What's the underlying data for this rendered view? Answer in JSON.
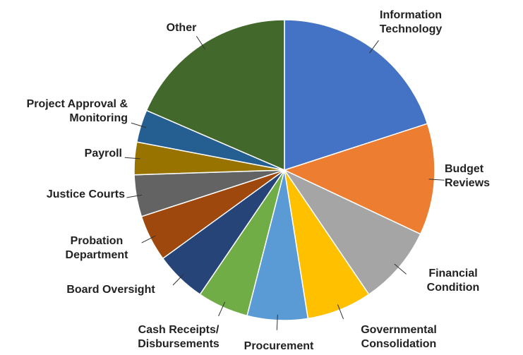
{
  "chart_data": {
    "type": "pie",
    "categories": [
      "Information Technology",
      "Budget Reviews",
      "Financial Condition",
      "Governmental Consolidation",
      "Procurement",
      "Cash Receipts/ Disbursements",
      "Board Oversight",
      "Probation Department",
      "Justice Courts",
      "Payroll",
      "Project Approval & Monitoring",
      "Other"
    ],
    "values": [
      20,
      12,
      8.5,
      7,
      6.5,
      5.5,
      5.5,
      5,
      4.5,
      3.5,
      3.5,
      18.5
    ],
    "colors": [
      "#4472c4",
      "#ed7d31",
      "#a5a5a5",
      "#ffc000",
      "#5b9bd5",
      "#70ad47",
      "#264478",
      "#9e480e",
      "#636363",
      "#997300",
      "#255e91",
      "#43682b"
    ]
  }
}
